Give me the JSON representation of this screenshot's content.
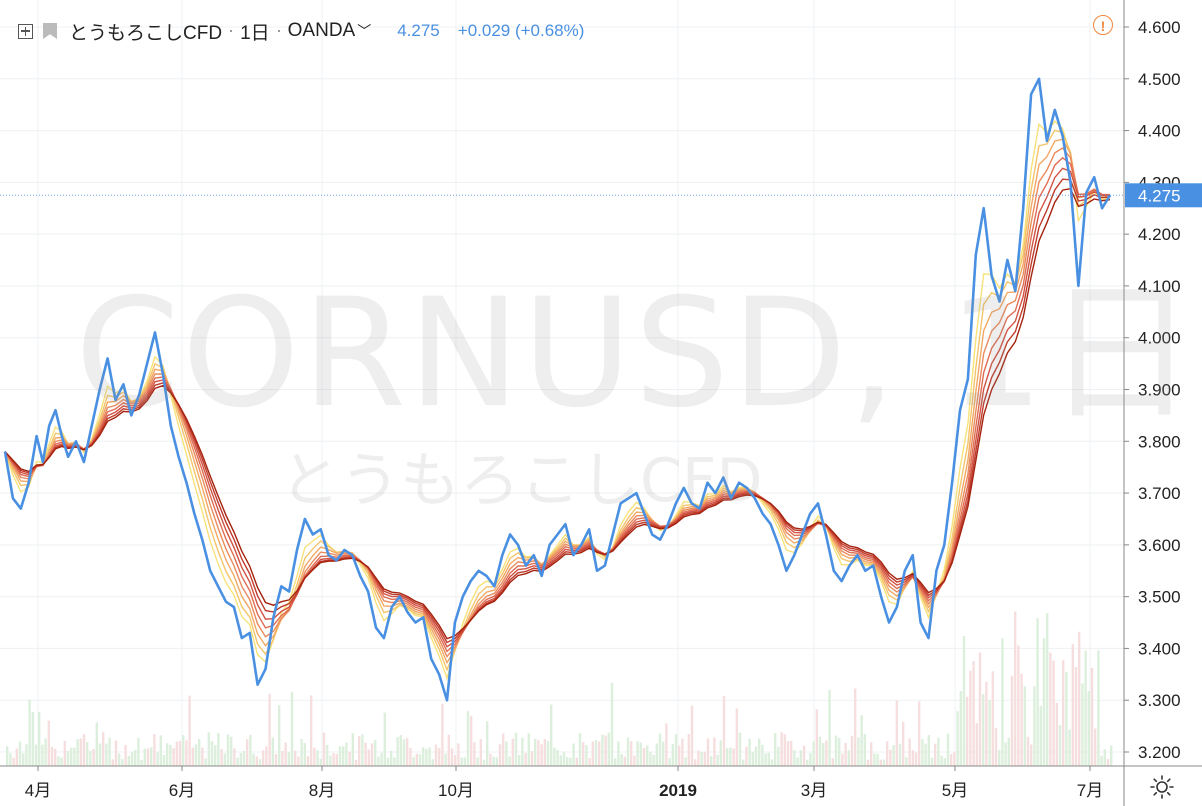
{
  "header": {
    "symbol": "とうもろこしCFD",
    "interval": "1日",
    "source": "OANDA",
    "source_chevron": "﹀",
    "last_price": "4.275",
    "change": "+0.029 (+0.68%)"
  },
  "watermark": {
    "main": "CORNUSD, 1日",
    "sub": "とうもろこしCFD"
  },
  "price_axis": {
    "ticks": [
      "4.600",
      "4.500",
      "4.400",
      "4.300",
      "4.200",
      "4.100",
      "4.000",
      "3.900",
      "3.800",
      "3.700",
      "3.600",
      "3.500",
      "3.400",
      "3.300",
      "3.200"
    ],
    "current_label": "4.275"
  },
  "time_axis": {
    "ticks": [
      "4月",
      "6月",
      "8月",
      "10月",
      "2019",
      "3月",
      "5月",
      "7月"
    ]
  },
  "icons": {
    "alert": "alert-icon",
    "settings": "settings-icon",
    "add": "add-symbol-icon",
    "flag": "flag-icon"
  },
  "colors": {
    "price_line": "#4a90e2",
    "ribbon_fast": "#f7e27a",
    "ribbon_slow": "#a5230e",
    "volume": "#d9ecd9"
  },
  "chart_data": {
    "type": "line",
    "title": "とうもろこしCFD, 1日, OANDA",
    "ylim": [
      3.18,
      4.62
    ],
    "current_price": 4.275,
    "x_categories": [
      "4月",
      "6月",
      "8月",
      "10月",
      "2019",
      "3月",
      "5月",
      "7月"
    ],
    "series": [
      {
        "name": "CORNUSD",
        "color": "#4a90e2",
        "points": [
          [
            0.0,
            3.78
          ],
          [
            0.5,
            3.69
          ],
          [
            1.0,
            3.67
          ],
          [
            1.5,
            3.72
          ],
          [
            2.0,
            3.81
          ],
          [
            2.4,
            3.76
          ],
          [
            2.8,
            3.83
          ],
          [
            3.2,
            3.86
          ],
          [
            3.6,
            3.81
          ],
          [
            4.0,
            3.77
          ],
          [
            4.5,
            3.8
          ],
          [
            5.0,
            3.76
          ],
          [
            5.5,
            3.83
          ],
          [
            6.0,
            3.9
          ],
          [
            6.5,
            3.96
          ],
          [
            7.0,
            3.88
          ],
          [
            7.5,
            3.91
          ],
          [
            8.0,
            3.85
          ],
          [
            8.5,
            3.89
          ],
          [
            9.0,
            3.95
          ],
          [
            9.5,
            4.01
          ],
          [
            10.0,
            3.93
          ],
          [
            10.5,
            3.83
          ],
          [
            11.0,
            3.77
          ],
          [
            11.5,
            3.72
          ],
          [
            12.0,
            3.66
          ],
          [
            12.5,
            3.61
          ],
          [
            13.0,
            3.55
          ],
          [
            13.5,
            3.52
          ],
          [
            14.0,
            3.49
          ],
          [
            14.5,
            3.48
          ],
          [
            15.0,
            3.42
          ],
          [
            15.5,
            3.43
          ],
          [
            16.0,
            3.33
          ],
          [
            16.5,
            3.36
          ],
          [
            17.0,
            3.46
          ],
          [
            17.5,
            3.52
          ],
          [
            18.0,
            3.51
          ],
          [
            18.5,
            3.59
          ],
          [
            19.0,
            3.65
          ],
          [
            19.5,
            3.62
          ],
          [
            20.0,
            3.63
          ],
          [
            20.5,
            3.58
          ],
          [
            21.0,
            3.57
          ],
          [
            21.5,
            3.59
          ],
          [
            22.0,
            3.58
          ],
          [
            22.5,
            3.54
          ],
          [
            23.0,
            3.51
          ],
          [
            23.5,
            3.44
          ],
          [
            24.0,
            3.42
          ],
          [
            24.5,
            3.48
          ],
          [
            25.0,
            3.5
          ],
          [
            25.5,
            3.47
          ],
          [
            26.0,
            3.45
          ],
          [
            26.5,
            3.46
          ],
          [
            27.0,
            3.38
          ],
          [
            27.5,
            3.35
          ],
          [
            28.0,
            3.3
          ],
          [
            28.5,
            3.45
          ],
          [
            29.0,
            3.5
          ],
          [
            29.5,
            3.53
          ],
          [
            30.0,
            3.55
          ],
          [
            30.5,
            3.54
          ],
          [
            31.0,
            3.52
          ],
          [
            31.5,
            3.58
          ],
          [
            32.0,
            3.62
          ],
          [
            32.5,
            3.6
          ],
          [
            33.0,
            3.56
          ],
          [
            33.5,
            3.58
          ],
          [
            34.0,
            3.54
          ],
          [
            34.5,
            3.6
          ],
          [
            35.0,
            3.62
          ],
          [
            35.5,
            3.64
          ],
          [
            36.0,
            3.58
          ],
          [
            36.5,
            3.6
          ],
          [
            37.0,
            3.63
          ],
          [
            37.5,
            3.55
          ],
          [
            38.0,
            3.56
          ],
          [
            38.5,
            3.62
          ],
          [
            39.0,
            3.68
          ],
          [
            39.5,
            3.69
          ],
          [
            40.0,
            3.7
          ],
          [
            40.5,
            3.66
          ],
          [
            41.0,
            3.62
          ],
          [
            41.5,
            3.61
          ],
          [
            42.0,
            3.64
          ],
          [
            42.5,
            3.68
          ],
          [
            43.0,
            3.71
          ],
          [
            43.5,
            3.68
          ],
          [
            44.0,
            3.67
          ],
          [
            44.5,
            3.72
          ],
          [
            45.0,
            3.7
          ],
          [
            45.5,
            3.73
          ],
          [
            46.0,
            3.69
          ],
          [
            46.5,
            3.72
          ],
          [
            47.0,
            3.71
          ],
          [
            47.5,
            3.69
          ],
          [
            48.0,
            3.66
          ],
          [
            48.5,
            3.64
          ],
          [
            49.0,
            3.6
          ],
          [
            49.5,
            3.55
          ],
          [
            50.0,
            3.58
          ],
          [
            50.5,
            3.62
          ],
          [
            51.0,
            3.66
          ],
          [
            51.5,
            3.68
          ],
          [
            52.0,
            3.62
          ],
          [
            52.5,
            3.55
          ],
          [
            53.0,
            3.53
          ],
          [
            53.5,
            3.56
          ],
          [
            54.0,
            3.58
          ],
          [
            54.5,
            3.55
          ],
          [
            55.0,
            3.56
          ],
          [
            55.5,
            3.5
          ],
          [
            56.0,
            3.45
          ],
          [
            56.5,
            3.48
          ],
          [
            57.0,
            3.55
          ],
          [
            57.5,
            3.58
          ],
          [
            58.0,
            3.45
          ],
          [
            58.5,
            3.42
          ],
          [
            59.0,
            3.55
          ],
          [
            59.5,
            3.6
          ],
          [
            60.0,
            3.72
          ],
          [
            60.5,
            3.86
          ],
          [
            61.0,
            3.92
          ],
          [
            61.5,
            4.16
          ],
          [
            62.0,
            4.25
          ],
          [
            62.5,
            4.12
          ],
          [
            63.0,
            4.07
          ],
          [
            63.5,
            4.15
          ],
          [
            64.0,
            4.09
          ],
          [
            64.5,
            4.25
          ],
          [
            65.0,
            4.47
          ],
          [
            65.5,
            4.5
          ],
          [
            66.0,
            4.38
          ],
          [
            66.5,
            4.44
          ],
          [
            67.0,
            4.39
          ],
          [
            67.5,
            4.3
          ],
          [
            68.0,
            4.1
          ],
          [
            68.5,
            4.28
          ],
          [
            69.0,
            4.31
          ],
          [
            69.5,
            4.25
          ],
          [
            70.0,
            4.275
          ]
        ]
      }
    ],
    "ribbon_ema_count": 8,
    "volume_bars": true
  }
}
